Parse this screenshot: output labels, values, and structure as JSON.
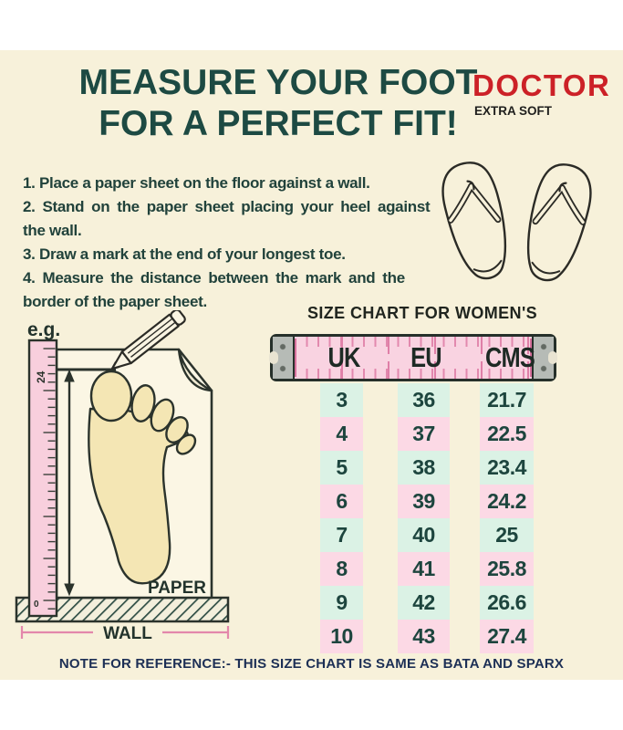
{
  "colors": {
    "background": "#f7f1da",
    "title_green": "#1d4a43",
    "brand_red": "#cc2127",
    "note_navy": "#1c2f55",
    "tape_pink": "#f9d3e1",
    "ruler_pink": "#f8cfdd",
    "row_mint": "#dbf2e5",
    "row_pink": "#fcd9e5",
    "outline_dark": "#2b332c"
  },
  "header": {
    "title_line1": "MEASURE YOUR FOOT",
    "title_line2": "FOR A PERFECT FIT!",
    "brand": "DOCTOR",
    "brand_sub": "EXTRA SOFT"
  },
  "instructions": {
    "lines": [
      "1. Place a paper sheet on the floor against a wall.",
      "2. Stand on the paper sheet placing your heel against",
      "the wall.",
      "3. Draw a mark at the end of your longest toe.",
      "4. Measure the distance between the mark and the",
      "border of the paper sheet."
    ]
  },
  "diagram": {
    "example_label": "e.g.",
    "ruler_top_number": "24",
    "ruler_bottom_number": "0",
    "paper_label": "PAPER",
    "wall_label": "WALL"
  },
  "size_chart": {
    "heading": "SIZE CHART FOR WOMEN'S",
    "columns": [
      "UK",
      "EU",
      "CMS"
    ],
    "rows": [
      [
        "3",
        "36",
        "21.7"
      ],
      [
        "4",
        "37",
        "22.5"
      ],
      [
        "5",
        "38",
        "23.4"
      ],
      [
        "6",
        "39",
        "24.2"
      ],
      [
        "7",
        "40",
        "25"
      ],
      [
        "8",
        "41",
        "25.8"
      ],
      [
        "9",
        "42",
        "26.6"
      ],
      [
        "10",
        "43",
        "27.4"
      ]
    ],
    "row_colors": {
      "even": "#dbf2e5",
      "odd": "#fcd9e5"
    }
  },
  "footer": {
    "note": "NOTE FOR REFERENCE:- THIS SIZE CHART IS SAME AS BATA AND SPARX"
  },
  "chart_data": {
    "type": "table",
    "title": "SIZE CHART FOR WOMEN'S",
    "columns": [
      "UK",
      "EU",
      "CMS"
    ],
    "rows": [
      [
        3,
        36,
        21.7
      ],
      [
        4,
        37,
        22.5
      ],
      [
        5,
        38,
        23.4
      ],
      [
        6,
        39,
        24.2
      ],
      [
        7,
        40,
        25
      ],
      [
        8,
        41,
        25.8
      ],
      [
        9,
        42,
        26.6
      ],
      [
        10,
        43,
        27.4
      ]
    ]
  }
}
